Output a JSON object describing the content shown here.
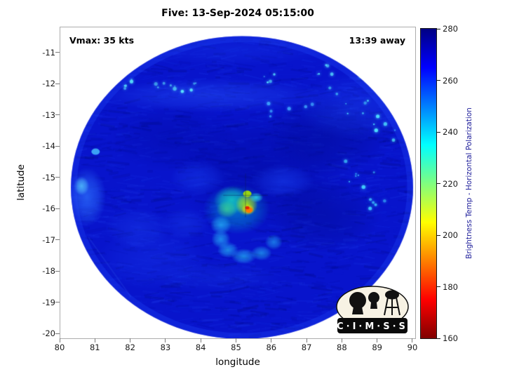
{
  "figure": {
    "logo_text": "C·I·M·S·S"
  },
  "chart_data": {
    "type": "heatmap",
    "title": "Five: 13-Sep-2024 05:15:00",
    "xlabel": "longitude",
    "ylabel": "latitude",
    "xlim": [
      80,
      90.06
    ],
    "ylim": [
      -20.13,
      -10.17
    ],
    "x_ticks": [
      80,
      81,
      82,
      83,
      84,
      85,
      86,
      87,
      88,
      89,
      90
    ],
    "y_ticks": [
      -11,
      -12,
      -13,
      -14,
      -15,
      -16,
      -17,
      -18,
      -19,
      -20
    ],
    "grid": false,
    "annotations": {
      "vmax": "Vmax: 35 kts",
      "time_away": "13:39 away"
    },
    "colorbar": {
      "label": "Brightness Temp - Horizontal Polarization",
      "label_color": "#1a1a99",
      "range": [
        160,
        280
      ],
      "ticks": [
        280,
        260,
        240,
        220,
        200,
        180,
        160
      ],
      "colormap": "jet_reversed",
      "stops": [
        {
          "pos": 0.0,
          "color": "#000083"
        },
        {
          "pos": 0.125,
          "color": "#0000ff"
        },
        {
          "pos": 0.375,
          "color": "#00ffff"
        },
        {
          "pos": 0.625,
          "color": "#ffff00"
        },
        {
          "pos": 0.875,
          "color": "#ff0000"
        },
        {
          "pos": 1.0,
          "color": "#800000"
        }
      ]
    },
    "swath": {
      "center_lon": 85.15,
      "center_lat": -15.3,
      "radius_lon_deg": 4.85,
      "radius_lat_deg": 4.85,
      "base_color": "#0814cc",
      "rim_color": "#2450ff",
      "background_temp_K": 265,
      "convective_core": {
        "lon": 85.3,
        "lat": -16.0,
        "approx_min_temp_K": 175
      },
      "storm_center": {
        "lon": 85.25,
        "lat": -15.55
      }
    },
    "texture": {
      "seed": 7,
      "streaks": 1900
    },
    "features": [
      {
        "t": "glow",
        "x": 85.7,
        "y": -14.8,
        "rx": 2.5,
        "ry": 2.0,
        "c": "#000899",
        "a": 0.5
      },
      {
        "t": "glow",
        "x": 87.6,
        "y": -13.6,
        "rx": 1.8,
        "ry": 1.3,
        "c": "#000a8c",
        "a": 0.45
      },
      {
        "t": "glow",
        "x": 87.5,
        "y": -16.2,
        "rx": 1.6,
        "ry": 1.2,
        "c": "#000a8a",
        "a": 0.4
      },
      {
        "t": "glow",
        "x": 83.2,
        "y": -13.7,
        "rx": 1.8,
        "ry": 1.1,
        "c": "#0009a0",
        "a": 0.38
      },
      {
        "t": "glow",
        "x": 85.0,
        "y": -10.9,
        "rx": 2.6,
        "ry": 0.5,
        "c": "#1a3df0",
        "a": 0.3
      },
      {
        "t": "glow",
        "x": 84.3,
        "y": -12.35,
        "rx": 3.2,
        "ry": 0.55,
        "c": "#2b5cff",
        "a": 0.4
      },
      {
        "t": "glow",
        "x": 88.4,
        "y": -12.7,
        "rx": 1.7,
        "ry": 1.1,
        "c": "#2456ff",
        "a": 0.3
      },
      {
        "t": "glow",
        "x": 80.75,
        "y": -15.6,
        "rx": 0.55,
        "ry": 0.95,
        "c": "#2f76ff",
        "a": 0.7
      },
      {
        "t": "glow",
        "x": 80.6,
        "y": -15.25,
        "rx": 0.22,
        "ry": 0.3,
        "c": "#56c8ff",
        "a": 0.8
      },
      {
        "t": "glow",
        "x": 84.5,
        "y": -18.15,
        "rx": 1.8,
        "ry": 0.5,
        "c": "#1636e0",
        "a": 0.35
      },
      {
        "t": "glow",
        "x": 82.6,
        "y": -17.6,
        "rx": 1.6,
        "ry": 1.0,
        "c": "#1a3df0",
        "a": 0.35
      },
      {
        "t": "glow",
        "x": 82.2,
        "y": -16.6,
        "rx": 0.95,
        "ry": 0.65,
        "c": "#1d43f0",
        "a": 0.4
      },
      {
        "t": "glow",
        "x": 86.3,
        "y": -15.1,
        "rx": 0.9,
        "ry": 0.55,
        "c": "#1e4bff",
        "a": 0.45
      },
      {
        "t": "glow",
        "x": 83.9,
        "y": -15.0,
        "rx": 0.8,
        "ry": 0.55,
        "c": "#1d49ff",
        "a": 0.4
      },
      {
        "t": "glow",
        "x": 83.55,
        "y": -16.45,
        "rx": 0.7,
        "ry": 0.5,
        "c": "#1b43ef",
        "a": 0.4
      },
      {
        "t": "seam",
        "x1": 82.05,
        "y1": -10.75,
        "x2": 80.4,
        "y2": -13.2,
        "c": "#2c50e8",
        "a": 0.3
      },
      {
        "t": "seam",
        "x1": 80.8,
        "y1": -16.9,
        "x2": 82.0,
        "y2": -18.8,
        "c": "#2c50e8",
        "a": 0.25
      },
      {
        "t": "glow",
        "x": 85.0,
        "y": -16.0,
        "rx": 0.95,
        "ry": 0.8,
        "c": "#00c9d2",
        "a": 0.5
      },
      {
        "t": "glow",
        "x": 84.85,
        "y": -15.7,
        "rx": 0.5,
        "ry": 0.45,
        "c": "#17e0c0",
        "a": 0.75
      },
      {
        "t": "glow",
        "x": 84.72,
        "y": -16.0,
        "rx": 0.3,
        "ry": 0.28,
        "c": "#3fd98c",
        "a": 0.7
      },
      {
        "t": "glow",
        "x": 84.55,
        "y": -16.5,
        "rx": 0.3,
        "ry": 0.3,
        "c": "#2bd4ff",
        "a": 0.6
      },
      {
        "t": "glow",
        "x": 84.55,
        "y": -16.95,
        "rx": 0.27,
        "ry": 0.3,
        "c": "#2bd4ff",
        "a": 0.6
      },
      {
        "t": "glow",
        "x": 84.75,
        "y": -17.3,
        "rx": 0.3,
        "ry": 0.26,
        "c": "#2bd4ff",
        "a": 0.6
      },
      {
        "t": "glow",
        "x": 85.2,
        "y": -17.5,
        "rx": 0.36,
        "ry": 0.25,
        "c": "#2bd4ff",
        "a": 0.6
      },
      {
        "t": "glow",
        "x": 85.7,
        "y": -17.4,
        "rx": 0.3,
        "ry": 0.24,
        "c": "#2bd4ff",
        "a": 0.55
      },
      {
        "t": "glow",
        "x": 86.05,
        "y": -17.05,
        "rx": 0.25,
        "ry": 0.25,
        "c": "#2bd4ff",
        "a": 0.5
      },
      {
        "t": "glow",
        "x": 85.28,
        "y": -15.85,
        "rx": 0.32,
        "ry": 0.36,
        "c": "#b8f000",
        "a": 0.85
      },
      {
        "t": "glow",
        "x": 85.32,
        "y": -16.0,
        "rx": 0.19,
        "ry": 0.17,
        "c": "#ffd900",
        "a": 0.95
      },
      {
        "t": "dot",
        "x": 85.35,
        "y": -16.02,
        "rx": 0.1,
        "ry": 0.09,
        "c": "#ff7700",
        "a": 0.95
      },
      {
        "t": "dot",
        "x": 85.3,
        "y": -15.95,
        "rx": 0.06,
        "ry": 0.05,
        "c": "#e81e00",
        "a": 0.95
      },
      {
        "t": "dot",
        "x": 85.3,
        "y": -15.5,
        "rx": 0.12,
        "ry": 0.1,
        "c": "#a7e800",
        "a": 0.9
      },
      {
        "t": "glow",
        "x": 85.55,
        "y": -15.62,
        "rx": 0.2,
        "ry": 0.16,
        "c": "#2fe8e8",
        "a": 0.8
      },
      {
        "t": "speckles",
        "x": 82.3,
        "y": -11.95,
        "sx": 1.0,
        "sy": 0.2,
        "n": 9,
        "c": "#5ff0ff"
      },
      {
        "t": "speckles",
        "x": 83.6,
        "y": -12.1,
        "sx": 0.6,
        "sy": 0.15,
        "n": 6,
        "c": "#5ff0ff"
      },
      {
        "t": "speckles",
        "x": 85.9,
        "y": -11.8,
        "sx": 0.4,
        "sy": 0.15,
        "n": 4,
        "c": "#59e4ff"
      },
      {
        "t": "speckles",
        "x": 88.6,
        "y": -12.4,
        "sx": 1.0,
        "sy": 0.9,
        "n": 14,
        "c": "#4fe4ff"
      },
      {
        "t": "speckles",
        "x": 89.4,
        "y": -13.4,
        "sx": 0.5,
        "sy": 0.4,
        "n": 6,
        "c": "#4fe4ff"
      },
      {
        "t": "speckles",
        "x": 88.45,
        "y": -14.8,
        "sx": 0.5,
        "sy": 0.5,
        "n": 7,
        "c": "#45d8ff"
      },
      {
        "t": "speckles",
        "x": 87.3,
        "y": -11.6,
        "sx": 0.5,
        "sy": 0.3,
        "n": 5,
        "c": "#59e4ff"
      },
      {
        "t": "speckles",
        "x": 86.6,
        "y": -12.9,
        "sx": 0.8,
        "sy": 0.3,
        "n": 6,
        "c": "#3fa8ff"
      },
      {
        "t": "speckles",
        "x": 88.8,
        "y": -15.9,
        "sx": 0.4,
        "sy": 0.3,
        "n": 5,
        "c": "#3fc8ff"
      },
      {
        "t": "dot",
        "x": 81.0,
        "y": -14.15,
        "rx": 0.12,
        "ry": 0.1,
        "c": "#49c3ff",
        "a": 0.8
      },
      {
        "t": "cross",
        "x": 85.25,
        "y": -15.55,
        "len": 0.7,
        "c": "#0a1a5a",
        "a": 0.45
      }
    ]
  }
}
